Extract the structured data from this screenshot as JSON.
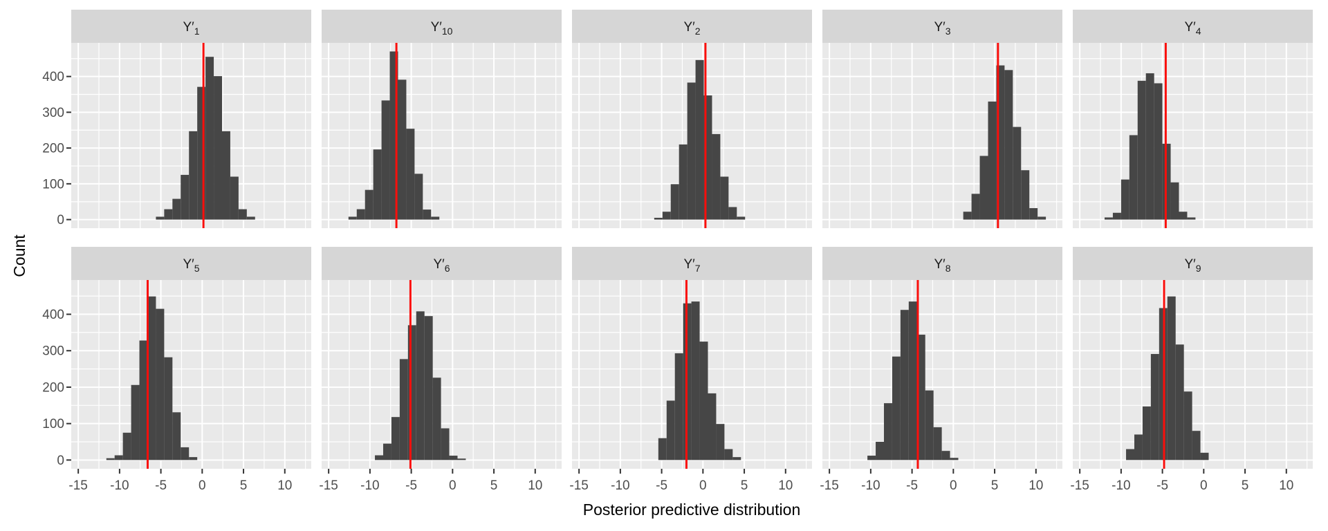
{
  "figure": {
    "kind": "faceted histogram plot (posterior predictive check)",
    "background": "#FFFFFF"
  },
  "chart_data": {
    "type": "histogram",
    "faceted": true,
    "facet_layout": {
      "rows": 2,
      "cols": 5
    },
    "xlabel": "Posterior predictive distribution",
    "ylabel": "Count",
    "x_ticks": [
      -15,
      -10,
      -5,
      0,
      5,
      10
    ],
    "y_ticks": [
      0,
      100,
      200,
      300,
      400
    ],
    "x_minor": [
      -12.5,
      -7.5,
      -2.5,
      2.5,
      7.5,
      12.5
    ],
    "y_minor": [
      50,
      150,
      250,
      350,
      450
    ],
    "x_range": [
      -15.85,
      13.2
    ],
    "y_range": [
      -24,
      494
    ],
    "bin_width": 1,
    "grid": "white major+minor gridlines on gray panel",
    "legend": "none",
    "style": {
      "panel_bg": "#E9E9E9",
      "strip_bg": "#D6D6D6",
      "grid": "#FFFFFF",
      "bar": "#464646",
      "red_line": "#FA0F0C",
      "tick_mark": "#333333",
      "tick_label": "#4D4D4D",
      "strip_text": "#1A1A1A"
    },
    "panels": [
      {
        "id": "Y1",
        "title": "Y′1",
        "label": {
          "base": "Y",
          "prime": "′",
          "sub": "1"
        },
        "red_line": 0.15,
        "bins": {
          "start": -5.6,
          "counts": [
            8,
            29,
            58,
            125,
            247,
            371,
            455,
            401,
            247,
            120,
            29,
            8
          ]
        }
      },
      {
        "id": "Y10",
        "title": "Y′10",
        "label": {
          "base": "Y",
          "prime": "′",
          "sub": "10"
        },
        "red_line": -6.8,
        "bins": {
          "start": -12.6,
          "counts": [
            8,
            29,
            83,
            196,
            333,
            470,
            391,
            254,
            128,
            28,
            8
          ]
        }
      },
      {
        "id": "Y2",
        "title": "Y′2",
        "label": {
          "base": "Y",
          "prime": "′",
          "sub": "2"
        },
        "red_line": 0.3,
        "bins": {
          "start": -5.9,
          "counts": [
            5,
            22,
            99,
            210,
            383,
            446,
            347,
            239,
            120,
            35,
            8
          ]
        }
      },
      {
        "id": "Y3",
        "title": "Y′3",
        "label": {
          "base": "Y",
          "prime": "′",
          "sub": "3"
        },
        "red_line": 5.4,
        "bins": {
          "start": 1.2,
          "counts": [
            22,
            72,
            178,
            330,
            431,
            418,
            259,
            138,
            32,
            8
          ]
        }
      },
      {
        "id": "Y4",
        "title": "Y′4",
        "label": {
          "base": "Y",
          "prime": "′",
          "sub": "4"
        },
        "red_line": -4.6,
        "bins": {
          "start": -12.0,
          "counts": [
            6,
            19,
            112,
            236,
            388,
            409,
            381,
            212,
            104,
            22,
            6
          ]
        }
      },
      {
        "id": "Y5",
        "title": "Y′5",
        "label": {
          "base": "Y",
          "prime": "′",
          "sub": "5"
        },
        "red_line": -6.6,
        "bins": {
          "start": -11.6,
          "counts": [
            5,
            13,
            75,
            206,
            328,
            449,
            415,
            282,
            131,
            35,
            8
          ]
        }
      },
      {
        "id": "Y6",
        "title": "Y′6",
        "label": {
          "base": "Y",
          "prime": "′",
          "sub": "6"
        },
        "red_line": -5.1,
        "bins": {
          "start": -9.4,
          "counts": [
            13,
            45,
            118,
            277,
            370,
            408,
            395,
            226,
            87,
            12,
            4
          ]
        }
      },
      {
        "id": "Y7",
        "title": "Y′7",
        "label": {
          "base": "Y",
          "prime": "′",
          "sub": "7"
        },
        "red_line": -2.0,
        "bins": {
          "start": -5.4,
          "counts": [
            60,
            163,
            293,
            430,
            435,
            325,
            183,
            99,
            30,
            8
          ]
        }
      },
      {
        "id": "Y8",
        "title": "Y′8",
        "label": {
          "base": "Y",
          "prime": "′",
          "sub": "8"
        },
        "red_line": -4.3,
        "bins": {
          "start": -10.4,
          "counts": [
            12,
            50,
            156,
            284,
            412,
            435,
            344,
            191,
            90,
            25,
            6
          ]
        }
      },
      {
        "id": "Y9",
        "title": "Y′9",
        "label": {
          "base": "Y",
          "prime": "′",
          "sub": "9"
        },
        "red_line": -4.8,
        "bins": {
          "start": -9.4,
          "counts": [
            30,
            70,
            147,
            291,
            417,
            449,
            317,
            188,
            80,
            20
          ]
        }
      }
    ]
  }
}
